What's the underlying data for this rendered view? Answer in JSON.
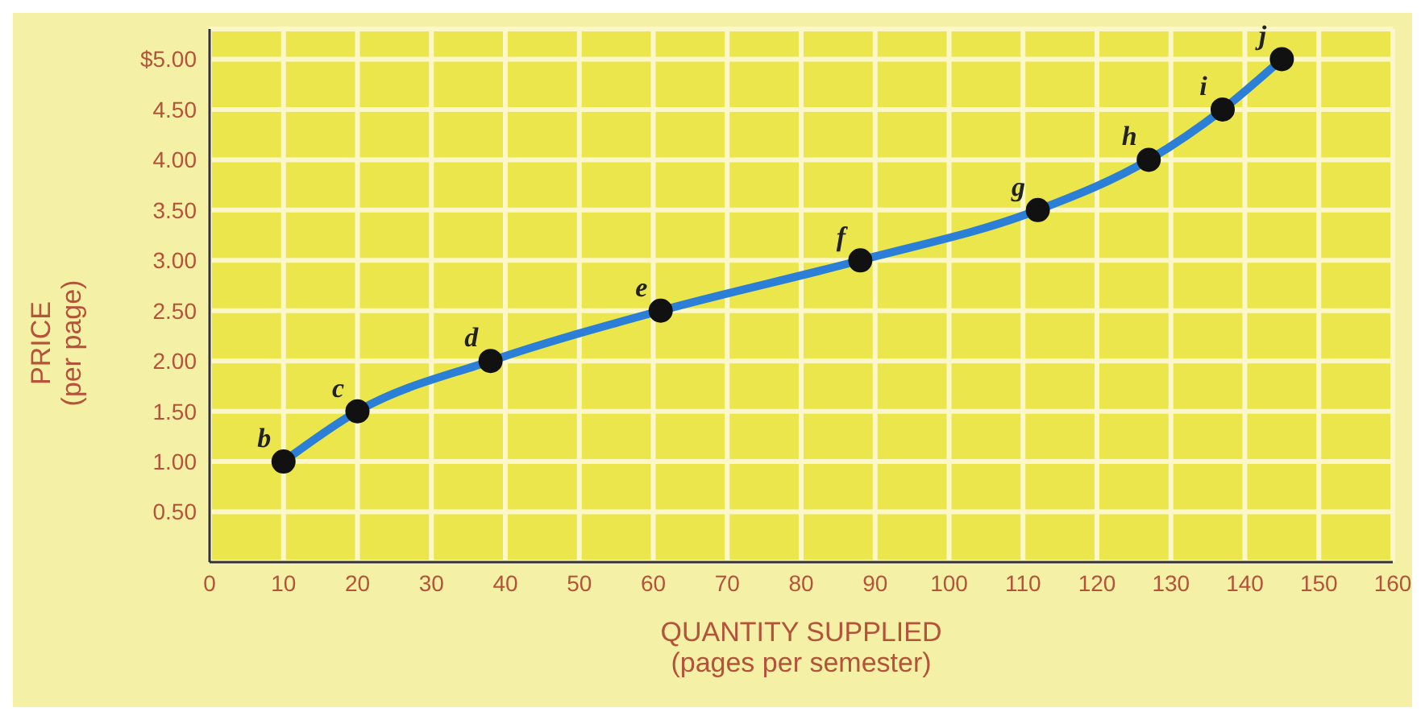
{
  "chart_data": {
    "type": "line",
    "xlabel": "QUANTITY SUPPLIED\n(pages per semester)",
    "ylabel": "PRICE\n(per page)",
    "x": [
      10,
      20,
      38,
      61,
      88,
      112,
      127,
      137,
      145
    ],
    "series": [
      {
        "color": "#2b7fd6",
        "values": [
          1.0,
          1.5,
          2.0,
          2.5,
          3.0,
          3.5,
          4.0,
          4.5,
          5.0
        ]
      }
    ],
    "marker": "circle",
    "grid": true,
    "xlim": [
      0,
      160
    ],
    "xticks": [
      0,
      10,
      20,
      30,
      40,
      50,
      60,
      70,
      80,
      90,
      100,
      110,
      120,
      130,
      140,
      150,
      160
    ],
    "ylim": [
      0,
      5.3
    ],
    "yticks": [
      {
        "value": 0.5,
        "label": "0.50"
      },
      {
        "value": 1,
        "label": "1.00"
      },
      {
        "value": 1.5,
        "label": "1.50"
      },
      {
        "value": 2,
        "label": "2.00"
      },
      {
        "value": 2.5,
        "label": "2.50"
      },
      {
        "value": 3,
        "label": "3.00"
      },
      {
        "value": 3.5,
        "label": "3.50"
      },
      {
        "value": 4,
        "label": "4.00"
      },
      {
        "value": 4.5,
        "label": "4.50"
      },
      {
        "value": 5,
        "label": "$5.00"
      }
    ],
    "annotations": [
      {
        "text": "b",
        "x": 10,
        "y": 1.0
      },
      {
        "text": "c",
        "x": 20,
        "y": 1.5
      },
      {
        "text": "d",
        "x": 38,
        "y": 2.0
      },
      {
        "text": "e",
        "x": 61,
        "y": 2.5
      },
      {
        "text": "f",
        "x": 88,
        "y": 3.0
      },
      {
        "text": "g",
        "x": 112,
        "y": 3.5
      },
      {
        "text": "h",
        "x": 127,
        "y": 4.0
      },
      {
        "text": "i",
        "x": 137,
        "y": 4.5
      },
      {
        "text": "j",
        "x": 145,
        "y": 5.0
      }
    ]
  }
}
